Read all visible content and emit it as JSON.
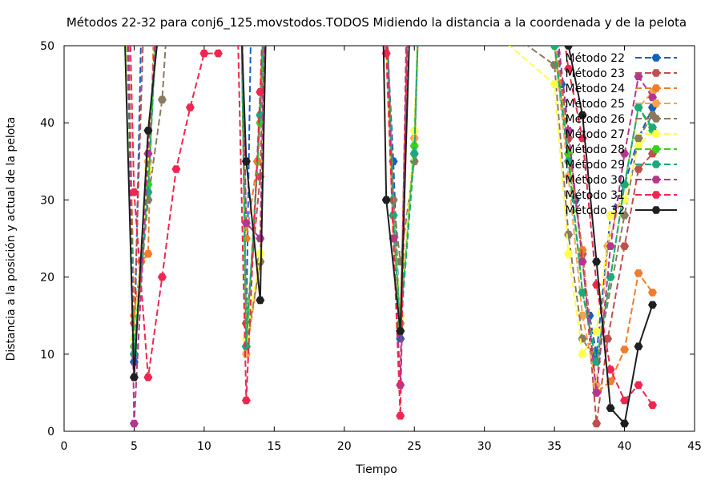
{
  "chart_data": {
    "type": "line",
    "title": "Métodos 22-32 para conj6_125.movstodos.TODOS Midiendo la distancia a la coordenada y de la pelota",
    "xlabel": "Tiempo",
    "ylabel": "Distancia a la posición y actual de la pelota",
    "xlim": [
      0,
      45
    ],
    "ylim": [
      0,
      50
    ],
    "xticks": [
      0,
      5,
      10,
      15,
      20,
      25,
      30,
      35,
      40,
      45
    ],
    "yticks": [
      0,
      10,
      20,
      30,
      40,
      50
    ],
    "grid": false,
    "legend_position": "top-right",
    "series": [
      {
        "name": "Método 22",
        "color": "#1560bd",
        "dash": "8,4",
        "points": [
          [
            5,
            9
          ],
          [
            5.6,
            60
          ],
          [
            12.6,
            60
          ],
          [
            13,
            14
          ],
          [
            13.4,
            60
          ],
          [
            14.6,
            60
          ],
          [
            14.95,
            55
          ],
          [
            22.8,
            60
          ],
          [
            23.5,
            35
          ],
          [
            24,
            12
          ],
          [
            24.6,
            60
          ],
          [
            35,
            55
          ],
          [
            35.5,
            45
          ],
          [
            36.5,
            30
          ],
          [
            37.5,
            15
          ],
          [
            38,
            10
          ],
          [
            39,
            28
          ],
          [
            40,
            32
          ],
          [
            41,
            38
          ],
          [
            42,
            42
          ]
        ]
      },
      {
        "name": "Método 23",
        "color": "#c0504d",
        "dash": "8,4",
        "points": [
          [
            4.5,
            60
          ],
          [
            5,
            14
          ],
          [
            5.8,
            60
          ],
          [
            12.6,
            60
          ],
          [
            13,
            14
          ],
          [
            14,
            33
          ],
          [
            14.4,
            60
          ],
          [
            22.9,
            60
          ],
          [
            23.5,
            30
          ],
          [
            24,
            13
          ],
          [
            24.6,
            60
          ],
          [
            35,
            52
          ],
          [
            36,
            38
          ],
          [
            37,
            23
          ],
          [
            38,
            1
          ],
          [
            38.8,
            12
          ],
          [
            40,
            24
          ],
          [
            41,
            34
          ],
          [
            42,
            36
          ]
        ]
      },
      {
        "name": "Método 24",
        "color": "#f07c2e",
        "dash": "8,4",
        "points": [
          [
            4.5,
            60
          ],
          [
            5,
            15
          ],
          [
            5.5,
            22
          ],
          [
            6,
            23
          ],
          [
            6.5,
            60
          ],
          [
            12.6,
            60
          ],
          [
            13,
            25
          ],
          [
            13.8,
            35
          ],
          [
            14.4,
            60
          ],
          [
            22.9,
            60
          ],
          [
            23.5,
            30
          ],
          [
            24,
            13
          ],
          [
            24.6,
            60
          ],
          [
            35,
            52
          ],
          [
            36,
            36
          ],
          [
            37,
            23.5
          ],
          [
            38,
            5
          ],
          [
            39,
            6.5
          ],
          [
            40,
            10.6
          ],
          [
            41,
            20.5
          ],
          [
            42,
            18
          ]
        ]
      },
      {
        "name": "Método 25",
        "color": "#f7a24f",
        "dash": "8,4",
        "points": [
          [
            4.3,
            60
          ],
          [
            5,
            12
          ],
          [
            6,
            35
          ],
          [
            6.8,
            60
          ],
          [
            12.6,
            60
          ],
          [
            13,
            10
          ],
          [
            14,
            22
          ],
          [
            14.5,
            60
          ],
          [
            22.8,
            60
          ],
          [
            23.5,
            25
          ],
          [
            24,
            14
          ],
          [
            25,
            38
          ],
          [
            25.4,
            60
          ],
          [
            35,
            50
          ],
          [
            36,
            33
          ],
          [
            37,
            15
          ],
          [
            38,
            6
          ],
          [
            38.8,
            24
          ],
          [
            40,
            32
          ],
          [
            41,
            42
          ],
          [
            42,
            44
          ]
        ]
      },
      {
        "name": "Método 26",
        "color": "#8a7a5e",
        "dash": "8,4",
        "points": [
          [
            4.5,
            60
          ],
          [
            5,
            10
          ],
          [
            6,
            30
          ],
          [
            7,
            43
          ],
          [
            7.6,
            60
          ],
          [
            12.6,
            60
          ],
          [
            13,
            11
          ],
          [
            14,
            22
          ],
          [
            14.5,
            60
          ],
          [
            22.9,
            60
          ],
          [
            23.5,
            30
          ],
          [
            24,
            22
          ],
          [
            25,
            35
          ],
          [
            25.4,
            60
          ],
          [
            35,
            47.5
          ],
          [
            36,
            25.5
          ],
          [
            37,
            12
          ],
          [
            38,
            9
          ],
          [
            40,
            28
          ],
          [
            41,
            38
          ],
          [
            42,
            41
          ]
        ]
      },
      {
        "name": "Método 27",
        "color": "#ffff4a",
        "dash": "8,4",
        "points": [
          [
            4.3,
            60
          ],
          [
            5,
            12
          ],
          [
            6,
            34
          ],
          [
            6.8,
            60
          ],
          [
            12.6,
            60
          ],
          [
            13,
            12
          ],
          [
            14,
            23
          ],
          [
            14.5,
            60
          ],
          [
            22.8,
            60
          ],
          [
            23.5,
            28
          ],
          [
            24,
            15
          ],
          [
            25,
            39
          ],
          [
            25.4,
            60
          ],
          [
            35,
            45
          ],
          [
            36,
            23
          ],
          [
            37,
            10
          ],
          [
            38,
            13
          ],
          [
            39,
            28
          ],
          [
            40,
            30
          ],
          [
            41,
            37
          ],
          [
            42,
            39
          ]
        ]
      },
      {
        "name": "Método 28",
        "color": "#39d11f",
        "dash": "8,4",
        "points": [
          [
            4.4,
            60
          ],
          [
            5,
            11
          ],
          [
            6,
            32
          ],
          [
            6.8,
            60
          ],
          [
            12.6,
            60
          ],
          [
            13,
            11
          ],
          [
            14,
            40
          ],
          [
            14.4,
            60
          ],
          [
            22.9,
            60
          ],
          [
            23.5,
            28
          ],
          [
            24,
            14
          ],
          [
            25,
            37
          ],
          [
            25.4,
            60
          ],
          [
            35,
            50
          ],
          [
            36,
            36
          ],
          [
            37,
            18
          ],
          [
            38,
            9
          ],
          [
            39,
            20
          ],
          [
            40,
            32
          ],
          [
            41,
            42
          ],
          [
            42,
            39
          ]
        ]
      },
      {
        "name": "Método 29",
        "color": "#1ca97e",
        "dash": "8,4",
        "points": [
          [
            4.4,
            60
          ],
          [
            5,
            10
          ],
          [
            6,
            31
          ],
          [
            6.8,
            60
          ],
          [
            12.6,
            60
          ],
          [
            13,
            11
          ],
          [
            14,
            41
          ],
          [
            14.4,
            60
          ],
          [
            22.9,
            60
          ],
          [
            23.5,
            28
          ],
          [
            24,
            13
          ],
          [
            25,
            36
          ],
          [
            25.4,
            60
          ],
          [
            35,
            50
          ],
          [
            36,
            35
          ],
          [
            37,
            18
          ],
          [
            38,
            9
          ],
          [
            39,
            20
          ],
          [
            40,
            32
          ],
          [
            41,
            42
          ],
          [
            42,
            39.4
          ]
        ]
      },
      {
        "name": "Método 30",
        "color": "#b2388e",
        "dash": "8,4",
        "points": [
          [
            4.5,
            60
          ],
          [
            5,
            1
          ],
          [
            6,
            36
          ],
          [
            6.8,
            60
          ],
          [
            12.6,
            60
          ],
          [
            13,
            27
          ],
          [
            14,
            25
          ],
          [
            14.4,
            60
          ],
          [
            22.9,
            60
          ],
          [
            23.5,
            25
          ],
          [
            24,
            6
          ],
          [
            24.5,
            60
          ],
          [
            35,
            55
          ],
          [
            36,
            39
          ],
          [
            37,
            22
          ],
          [
            38,
            5
          ],
          [
            39,
            24
          ],
          [
            40,
            36
          ],
          [
            41,
            46
          ],
          [
            42,
            43.3
          ]
        ]
      },
      {
        "name": "Método 31",
        "color": "#ee2750",
        "dash": "8,4",
        "points": [
          [
            4.6,
            60
          ],
          [
            5,
            31
          ],
          [
            6,
            7
          ],
          [
            7,
            20
          ],
          [
            8,
            34
          ],
          [
            9,
            42
          ],
          [
            10,
            49
          ],
          [
            11,
            49
          ],
          [
            12.3,
            60
          ],
          [
            13,
            4
          ],
          [
            14,
            44
          ],
          [
            14.3,
            60
          ],
          [
            22.6,
            60
          ],
          [
            23,
            49
          ],
          [
            24,
            2
          ],
          [
            24.6,
            60
          ],
          [
            35,
            60
          ],
          [
            36,
            47
          ],
          [
            37,
            38
          ],
          [
            38,
            19
          ],
          [
            39,
            8
          ],
          [
            40,
            4
          ],
          [
            41,
            6
          ],
          [
            42,
            3.4
          ]
        ]
      },
      {
        "name": "Método 32",
        "color": "#1f1f1f",
        "dash": "none",
        "points": [
          [
            4.2,
            60
          ],
          [
            5,
            7
          ],
          [
            6,
            39
          ],
          [
            7.2,
            60
          ],
          [
            12.5,
            60
          ],
          [
            13,
            35
          ],
          [
            14,
            17
          ],
          [
            14.5,
            60
          ],
          [
            22.7,
            60
          ],
          [
            23,
            30
          ],
          [
            24,
            13
          ],
          [
            24.8,
            60
          ],
          [
            35.5,
            60
          ],
          [
            36,
            50
          ],
          [
            37,
            41
          ],
          [
            38,
            22
          ],
          [
            39,
            3
          ],
          [
            40,
            1
          ],
          [
            41,
            11
          ],
          [
            42,
            16.4
          ]
        ]
      }
    ]
  }
}
